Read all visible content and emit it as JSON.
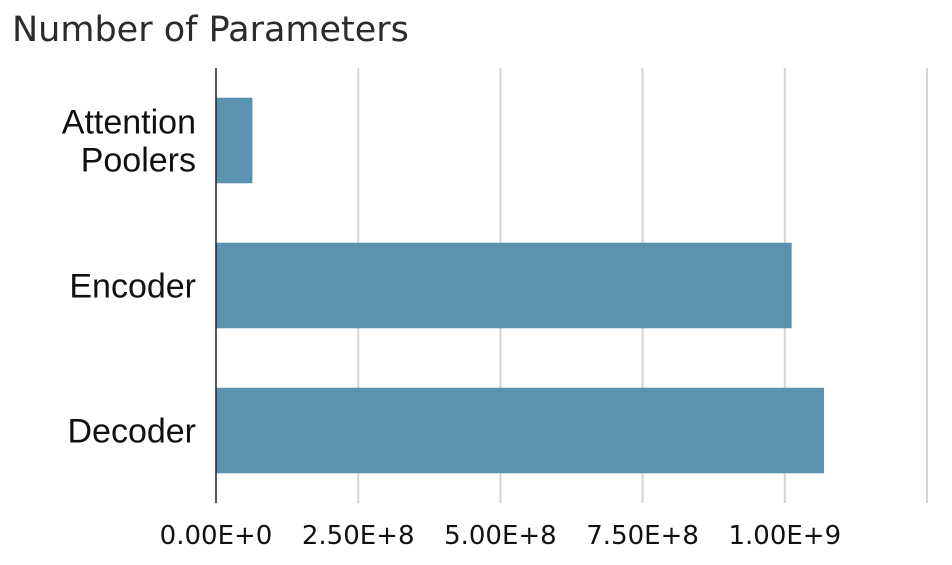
{
  "chart_data": {
    "type": "bar",
    "orientation": "horizontal",
    "title": "Number of Parameters",
    "categories": [
      [
        "Attention",
        "Poolers"
      ],
      [
        "Encoder"
      ],
      [
        "Decoder"
      ]
    ],
    "values": [
      64000000,
      1012000000,
      1069000000
    ],
    "xlim": [
      0,
      1250000000
    ],
    "xticks": [
      0,
      250000000,
      500000000,
      750000000,
      1000000000,
      1250000000
    ],
    "xtick_labels": [
      "0.00E+0",
      "2.50E+8",
      "5.00E+8",
      "7.50E+8",
      "1.00E+9",
      ""
    ],
    "grid": "vertical",
    "bar_color": "#5b92b0",
    "xlabel": "",
    "ylabel": ""
  }
}
